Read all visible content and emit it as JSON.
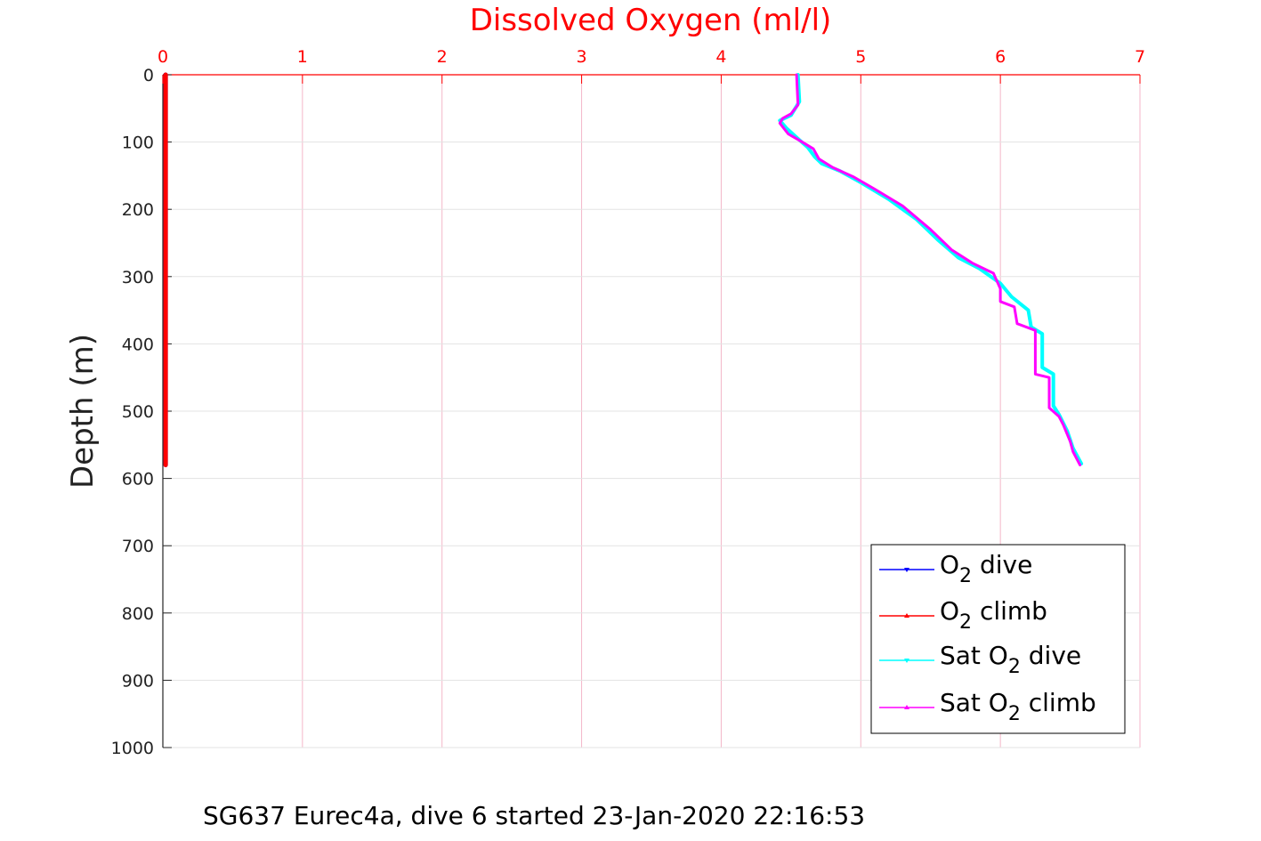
{
  "chart_data": {
    "type": "line",
    "title": "Dissolved Oxygen (ml/l)",
    "xlabel": "",
    "ylabel": "Depth (m)",
    "caption": "SG637 Eurec4a, dive 6 started 23-Jan-2020 22:16:53",
    "xlim": [
      0,
      7
    ],
    "ylim": [
      0,
      1000
    ],
    "y_reversed": true,
    "x_axis_position": "top",
    "x_ticks": [
      0,
      1,
      2,
      3,
      4,
      5,
      6,
      7
    ],
    "y_ticks": [
      0,
      100,
      200,
      300,
      400,
      500,
      600,
      700,
      800,
      900,
      1000
    ],
    "grid": true,
    "grid_color": "#f4b6c8",
    "x_axis_color": "#ff0000",
    "legend_placement": "bottom-right",
    "series": [
      {
        "name": "O2 dive",
        "legend_main": "O",
        "legend_sub": "2",
        "legend_rest": " dive",
        "color": "#0000ff",
        "marker": "down-triangle",
        "points": [
          [
            0.02,
            0
          ],
          [
            0.02,
            580
          ]
        ]
      },
      {
        "name": "O2 climb",
        "legend_main": "O",
        "legend_sub": "2",
        "legend_rest": " climb",
        "color": "#ff0000",
        "marker": "up-triangle",
        "points": [
          [
            0.02,
            0
          ],
          [
            0.02,
            580
          ]
        ]
      },
      {
        "name": "Sat O2 dive",
        "legend_main": "Sat O",
        "legend_sub": "2",
        "legend_rest": " dive",
        "color": "#00ffff",
        "marker": "down-triangle",
        "points": [
          [
            4.55,
            0
          ],
          [
            4.56,
            40
          ],
          [
            4.5,
            60
          ],
          [
            4.42,
            68
          ],
          [
            4.47,
            80
          ],
          [
            4.55,
            95
          ],
          [
            4.62,
            108
          ],
          [
            4.67,
            122
          ],
          [
            4.72,
            132
          ],
          [
            4.85,
            143
          ],
          [
            5.0,
            160
          ],
          [
            5.2,
            185
          ],
          [
            5.4,
            215
          ],
          [
            5.55,
            245
          ],
          [
            5.7,
            272
          ],
          [
            5.85,
            288
          ],
          [
            6.0,
            310
          ],
          [
            6.08,
            330
          ],
          [
            6.2,
            350
          ],
          [
            6.22,
            375
          ],
          [
            6.3,
            385
          ],
          [
            6.3,
            435
          ],
          [
            6.38,
            445
          ],
          [
            6.38,
            492
          ],
          [
            6.42,
            505
          ],
          [
            6.48,
            530
          ],
          [
            6.52,
            555
          ],
          [
            6.58,
            578
          ]
        ]
      },
      {
        "name": "Sat O2 climb",
        "legend_main": "Sat O",
        "legend_sub": "2",
        "legend_rest": " climb",
        "color": "#ff00ff",
        "marker": "up-triangle",
        "points": [
          [
            4.54,
            0
          ],
          [
            4.55,
            45
          ],
          [
            4.5,
            58
          ],
          [
            4.44,
            65
          ],
          [
            4.42,
            72
          ],
          [
            4.48,
            88
          ],
          [
            4.58,
            100
          ],
          [
            4.66,
            110
          ],
          [
            4.7,
            125
          ],
          [
            4.8,
            138
          ],
          [
            4.95,
            152
          ],
          [
            5.1,
            170
          ],
          [
            5.3,
            195
          ],
          [
            5.5,
            230
          ],
          [
            5.65,
            260
          ],
          [
            5.8,
            280
          ],
          [
            5.95,
            295
          ],
          [
            6.0,
            318
          ],
          [
            6.0,
            337
          ],
          [
            6.1,
            345
          ],
          [
            6.12,
            370
          ],
          [
            6.25,
            380
          ],
          [
            6.25,
            445
          ],
          [
            6.35,
            450
          ],
          [
            6.35,
            495
          ],
          [
            6.42,
            508
          ],
          [
            6.45,
            520
          ],
          [
            6.5,
            545
          ],
          [
            6.52,
            560
          ],
          [
            6.57,
            580
          ]
        ]
      }
    ]
  }
}
